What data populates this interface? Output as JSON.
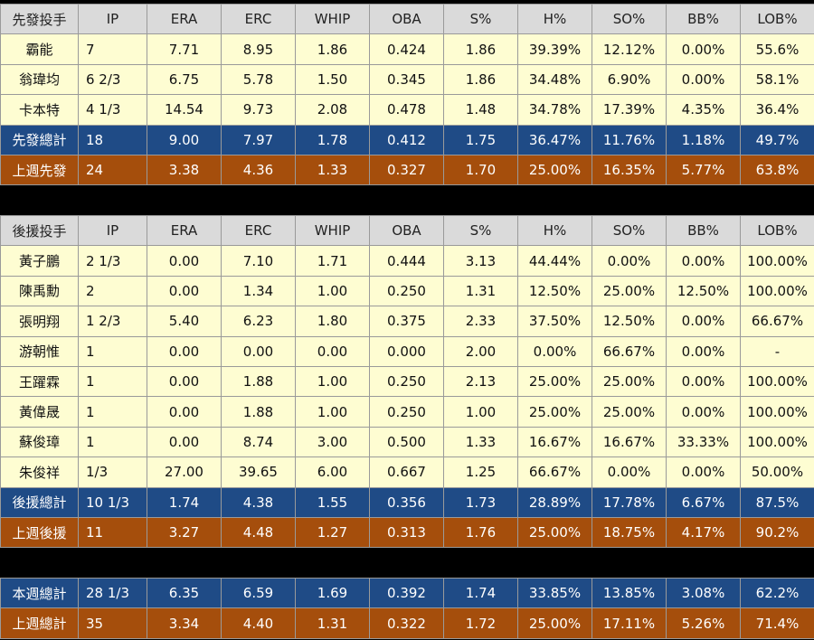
{
  "columns": [
    "IP",
    "ERA",
    "ERC",
    "WHIP",
    "OBA",
    "S%",
    "H%",
    "SO%",
    "BB%",
    "LOB%"
  ],
  "starters": {
    "header": "先發投手",
    "rows": [
      {
        "name": "霸能",
        "values": [
          "7",
          "7.71",
          "8.95",
          "1.86",
          "0.424",
          "1.86",
          "39.39%",
          "12.12%",
          "0.00%",
          "55.6%"
        ]
      },
      {
        "name": "翁瑋均",
        "values": [
          "6 2/3",
          "6.75",
          "5.78",
          "1.50",
          "0.345",
          "1.86",
          "34.48%",
          "6.90%",
          "0.00%",
          "58.1%"
        ]
      },
      {
        "name": "卡本特",
        "values": [
          "4 1/3",
          "14.54",
          "9.73",
          "2.08",
          "0.478",
          "1.48",
          "34.78%",
          "17.39%",
          "4.35%",
          "36.4%"
        ]
      }
    ],
    "total": {
      "name": "先發總計",
      "values": [
        "18",
        "9.00",
        "7.97",
        "1.78",
        "0.412",
        "1.75",
        "36.47%",
        "11.76%",
        "1.18%",
        "49.7%"
      ]
    },
    "prev": {
      "name": "上週先發",
      "values": [
        "24",
        "3.38",
        "4.36",
        "1.33",
        "0.327",
        "1.70",
        "25.00%",
        "16.35%",
        "5.77%",
        "63.8%"
      ]
    }
  },
  "relievers": {
    "header": "後援投手",
    "rows": [
      {
        "name": "黃子鵬",
        "values": [
          "2 1/3",
          "0.00",
          "7.10",
          "1.71",
          "0.444",
          "3.13",
          "44.44%",
          "0.00%",
          "0.00%",
          "100.00%"
        ]
      },
      {
        "name": "陳禹勳",
        "values": [
          "2",
          "0.00",
          "1.34",
          "1.00",
          "0.250",
          "1.31",
          "12.50%",
          "25.00%",
          "12.50%",
          "100.00%"
        ]
      },
      {
        "name": "張明翔",
        "values": [
          "1 2/3",
          "5.40",
          "6.23",
          "1.80",
          "0.375",
          "2.33",
          "37.50%",
          "12.50%",
          "0.00%",
          "66.67%"
        ]
      },
      {
        "name": "游朝惟",
        "values": [
          "1",
          "0.00",
          "0.00",
          "0.00",
          "0.000",
          "2.00",
          "0.00%",
          "66.67%",
          "0.00%",
          "-"
        ]
      },
      {
        "name": "王躍霖",
        "values": [
          "1",
          "0.00",
          "1.88",
          "1.00",
          "0.250",
          "2.13",
          "25.00%",
          "25.00%",
          "0.00%",
          "100.00%"
        ]
      },
      {
        "name": "黃偉晟",
        "values": [
          "1",
          "0.00",
          "1.88",
          "1.00",
          "0.250",
          "1.00",
          "25.00%",
          "25.00%",
          "0.00%",
          "100.00%"
        ]
      },
      {
        "name": "蘇俊璋",
        "values": [
          "1",
          "0.00",
          "8.74",
          "3.00",
          "0.500",
          "1.33",
          "16.67%",
          "16.67%",
          "33.33%",
          "100.00%"
        ]
      },
      {
        "name": "朱俊祥",
        "values": [
          "1/3",
          "27.00",
          "39.65",
          "6.00",
          "0.667",
          "1.25",
          "66.67%",
          "0.00%",
          "0.00%",
          "50.00%"
        ]
      }
    ],
    "total": {
      "name": "後援總計",
      "values": [
        "10 1/3",
        "1.74",
        "4.38",
        "1.55",
        "0.356",
        "1.73",
        "28.89%",
        "17.78%",
        "6.67%",
        "87.5%"
      ]
    },
    "prev": {
      "name": "上週後援",
      "values": [
        "11",
        "3.27",
        "4.48",
        "1.27",
        "0.313",
        "1.76",
        "25.00%",
        "18.75%",
        "4.17%",
        "90.2%"
      ]
    }
  },
  "week_totals": [
    {
      "name": "本週總計",
      "kind": "total",
      "values": [
        "28 1/3",
        "6.35",
        "6.59",
        "1.69",
        "0.392",
        "1.74",
        "33.85%",
        "13.85%",
        "3.08%",
        "62.2%"
      ]
    },
    {
      "name": "上週總計",
      "kind": "prev",
      "values": [
        "35",
        "3.34",
        "4.40",
        "1.31",
        "0.322",
        "1.72",
        "25.00%",
        "17.11%",
        "5.26%",
        "71.4%"
      ]
    }
  ],
  "colors": {
    "header": "#dadada",
    "row": "#fefdd2",
    "total": "#1f4b86",
    "prev": "#a54e0c",
    "background": "#000000"
  }
}
